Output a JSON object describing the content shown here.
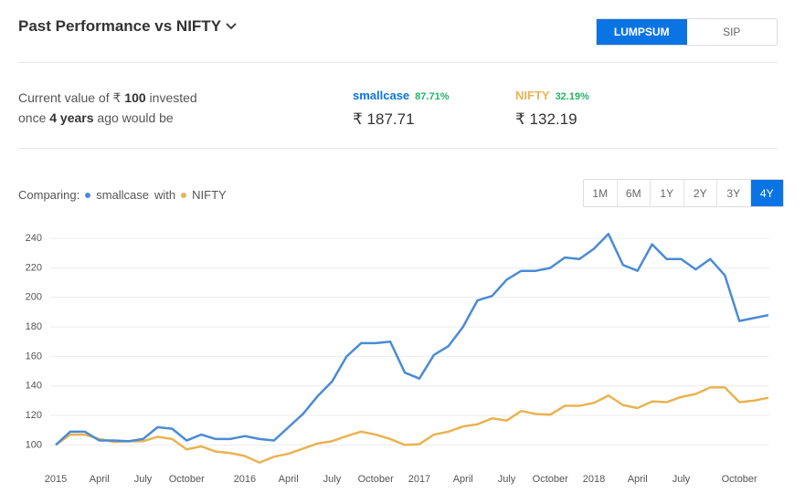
{
  "header": {
    "title": "Past Performance vs NIFTY"
  },
  "mode_toggle": [
    "LUMPSUM",
    "SIP"
  ],
  "summary": {
    "line1": [
      "Current value of ₹",
      "100",
      "invested"
    ],
    "line2": [
      "once",
      "4 years",
      "ago would be"
    ],
    "results": [
      {
        "name": "smallcase",
        "change": "87.71%",
        "value": "₹ 187.71"
      },
      {
        "name": "NIFTY",
        "change": "32.19%",
        "value": "₹ 132.19"
      }
    ]
  },
  "comparing": {
    "label": "Comparing:",
    "joiner": "with"
  },
  "ranges": [
    "1M",
    "6M",
    "1Y",
    "2Y",
    "3Y",
    "4Y"
  ],
  "chart_data": {
    "type": "line",
    "categories": [
      "2015",
      null,
      null,
      "April",
      null,
      null,
      "July",
      null,
      null,
      "October",
      null,
      null,
      null,
      "2016",
      null,
      null,
      "April",
      null,
      null,
      "July",
      null,
      null,
      "October",
      null,
      null,
      "2017",
      null,
      null,
      "April",
      null,
      null,
      "July",
      null,
      null,
      "October",
      null,
      null,
      "2018",
      null,
      null,
      "April",
      null,
      null,
      "July",
      null,
      null,
      null,
      "October",
      null,
      null
    ],
    "series": [
      {
        "name": "smallcase",
        "color": "#4a8bd6",
        "values": [
          100,
          109,
          109,
          103,
          103,
          102.5,
          104,
          112,
          111,
          103,
          107,
          104,
          104,
          106,
          104,
          103,
          112,
          121,
          133,
          143,
          160,
          169,
          169,
          170,
          149,
          145,
          161,
          167,
          180,
          198,
          201,
          212,
          218,
          218,
          220,
          227,
          226,
          233,
          243,
          222,
          218,
          236,
          226,
          226,
          219,
          226,
          215,
          184,
          186,
          188
        ]
      },
      {
        "name": "NIFTY",
        "color": "#e9b352",
        "values": [
          100,
          107,
          107,
          104,
          102,
          102.5,
          102.5,
          105.5,
          104,
          97,
          99,
          95.5,
          94.5,
          92.5,
          88,
          92,
          94,
          97.5,
          101,
          102.5,
          106,
          109,
          107,
          104,
          100,
          100.5,
          107,
          109,
          112.5,
          114,
          118,
          116.5,
          123,
          121,
          120.5,
          126.5,
          126.5,
          128.5,
          133.5,
          127,
          125,
          129.5,
          129,
          132.5,
          134.5,
          139,
          139,
          129,
          130,
          132
        ]
      }
    ],
    "ylim": [
      86,
      250
    ],
    "yticks": [
      100,
      120,
      140,
      160,
      180,
      200,
      220,
      240
    ],
    "grid": true
  }
}
